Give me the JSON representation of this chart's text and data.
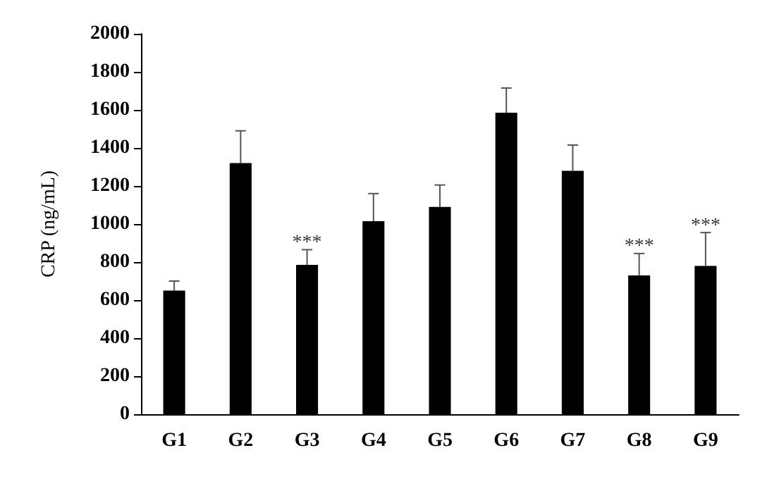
{
  "chart_data": {
    "type": "bar",
    "ylabel": "CRP (ng/mL)",
    "categories": [
      "G1",
      "G2",
      "G3",
      "G4",
      "G5",
      "G6",
      "G7",
      "G8",
      "G9"
    ],
    "values": [
      650,
      1320,
      785,
      1015,
      1090,
      1585,
      1280,
      730,
      780
    ],
    "errors": [
      [
        650,
        700
      ],
      [
        1320,
        1490
      ],
      [
        785,
        865
      ],
      [
        1015,
        1160
      ],
      [
        1090,
        1205
      ],
      [
        1585,
        1715
      ],
      [
        1280,
        1415
      ],
      [
        730,
        845
      ],
      [
        780,
        955
      ]
    ],
    "color": "#000000",
    "ylim": [
      0,
      2000
    ],
    "yticks": [
      0,
      200,
      400,
      600,
      800,
      1000,
      1200,
      1400,
      1600,
      1800,
      2000
    ],
    "grid": false,
    "annotations": [
      {
        "text": "***",
        "x": "G3",
        "y": 900
      },
      {
        "text": "***",
        "x": "G8",
        "y": 880
      },
      {
        "text": "***",
        "x": "G9",
        "y": 990
      }
    ]
  }
}
